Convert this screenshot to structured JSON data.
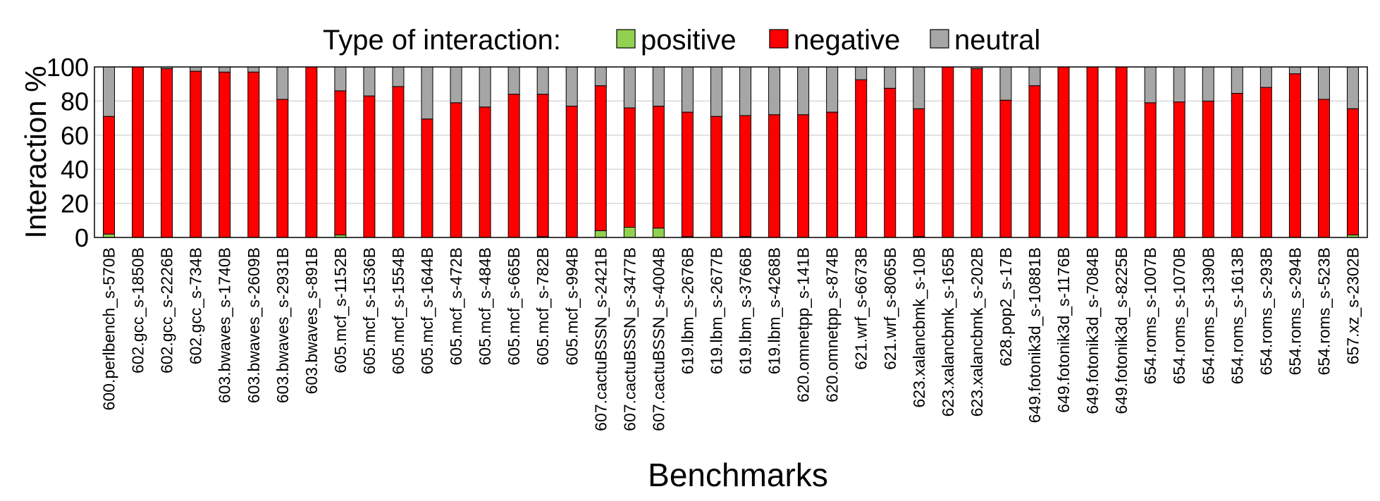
{
  "chart_data": {
    "type": "bar",
    "stacked": true,
    "legend_title": "Type of interaction:",
    "legend_position": "top",
    "xlabel": "Benchmarks",
    "ylabel": "Interaction %",
    "ylim": [
      0,
      100
    ],
    "yticks": [
      0,
      20,
      40,
      60,
      80,
      100
    ],
    "grid": true,
    "categories": [
      "600.perlbench_s-570B",
      "602.gcc_s-1850B",
      "602.gcc_s-2226B",
      "602.gcc_s-734B",
      "603.bwaves_s-1740B",
      "603.bwaves_s-2609B",
      "603.bwaves_s-2931B",
      "603.bwaves_s-891B",
      "605.mcf_s-1152B",
      "605.mcf_s-1536B",
      "605.mcf_s-1554B",
      "605.mcf_s-1644B",
      "605.mcf_s-472B",
      "605.mcf_s-484B",
      "605.mcf_s-665B",
      "605.mcf_s-782B",
      "605.mcf_s-994B",
      "607.cactuBSSN_s-2421B",
      "607.cactuBSSN_s-3477B",
      "607.cactuBSSN_s-4004B",
      "619.lbm_s-2676B",
      "619.lbm_s-2677B",
      "619.lbm_s-3766B",
      "619.lbm_s-4268B",
      "620.omnetpp_s-141B",
      "620.omnetpp_s-874B",
      "621.wrf_s-6673B",
      "621.wrf_s-8065B",
      "623.xalancbmk_s-10B",
      "623.xalancbmk_s-165B",
      "623.xalancbmk_s-202B",
      "628.pop2_s-17B",
      "649.fotonik3d_s-10881B",
      "649.fotonik3d_s-1176B",
      "649.fotonik3d_s-7084B",
      "649.fotonik3d_s-8225B",
      "654.roms_s-1007B",
      "654.roms_s-1070B",
      "654.roms_s-1390B",
      "654.roms_s-1613B",
      "654.roms_s-293B",
      "654.roms_s-294B",
      "654.roms_s-523B",
      "657.xz_s-2302B"
    ],
    "series": [
      {
        "name": "positive",
        "color": "#92D050",
        "values": [
          2,
          0,
          0,
          0,
          0,
          0,
          0,
          0,
          1.5,
          0,
          0,
          0,
          0,
          0,
          0,
          0.5,
          0,
          4,
          6,
          5.5,
          0.5,
          0,
          0.5,
          0,
          0,
          0,
          0,
          0,
          0.5,
          0,
          0,
          0,
          0,
          0,
          0,
          0,
          0,
          0,
          0,
          0,
          0,
          0,
          0,
          1.5
        ]
      },
      {
        "name": "negative",
        "color": "#FF0000",
        "values": [
          69,
          100,
          99,
          97.5,
          97,
          97,
          81,
          100,
          84.5,
          83,
          88.5,
          69.5,
          79,
          76.5,
          84,
          83.5,
          77,
          85,
          70,
          71.5,
          73,
          71,
          71,
          72,
          72,
          73.5,
          92.5,
          87.5,
          75,
          100,
          99,
          80.5,
          89,
          100,
          100,
          100,
          79,
          79.5,
          80,
          84.5,
          88,
          96,
          81,
          74
        ]
      },
      {
        "name": "neutral",
        "color": "#A6A6A6",
        "values": [
          29,
          0,
          1,
          2.5,
          3,
          3,
          19,
          0,
          14,
          17,
          11.5,
          30.5,
          21,
          23.5,
          16,
          16,
          23,
          11,
          24,
          23,
          26.5,
          29,
          28.5,
          28,
          28,
          26.5,
          7.5,
          12.5,
          24.5,
          0,
          1,
          19.5,
          11,
          0,
          0,
          0,
          21,
          20.5,
          20,
          15.5,
          12,
          4,
          19,
          24.5
        ]
      }
    ]
  }
}
